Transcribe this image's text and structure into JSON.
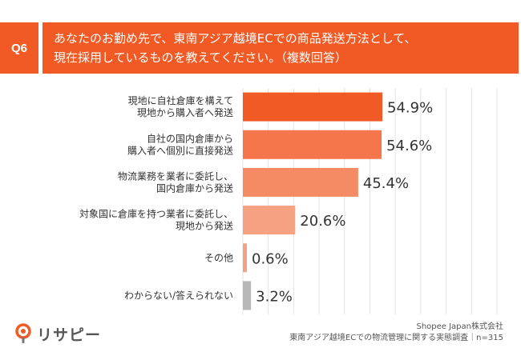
{
  "question": {
    "number": "Q6",
    "lines": [
      "あなたのお勤め先で、東南アジア越境ECでの商品発送方法として、",
      "現在採用しているものを教えてください。（複数回答）"
    ]
  },
  "chart_data": {
    "type": "bar",
    "orientation": "horizontal",
    "unit": "%",
    "xlim": [
      0,
      100
    ],
    "grid": true,
    "categories": [
      [
        "現地に自社倉庫を構えて",
        "現地から購入者へ発送"
      ],
      [
        "自社の国内倉庫から",
        "購入者へ個別に直接発送"
      ],
      [
        "物流業務を業者に委託し、",
        "国内倉庫から発送"
      ],
      [
        "対象国に倉庫を持つ業者に委託し、",
        "現地から発送"
      ],
      [
        "その他"
      ],
      [
        "わからない/答えられない"
      ]
    ],
    "values": [
      54.9,
      54.6,
      45.4,
      20.6,
      0.6,
      3.2
    ],
    "value_labels": [
      "54.9%",
      "54.6%",
      "45.4%",
      "20.6%",
      "0.6%",
      "3.2%"
    ],
    "bar_colors": [
      "#f15a24",
      "#f4764a",
      "#f58b64",
      "#f7a183",
      "#f7a183",
      "#b8b8b8"
    ],
    "gridline_color": "#e3e3e3"
  },
  "footer": {
    "logo_text": "リサピー",
    "logo_mark_color": "#f15a24",
    "source_lines": [
      "Shopee Japan株式会社",
      "東南アジア越境ECでの物流管理に関する実態調査｜n=315"
    ]
  }
}
